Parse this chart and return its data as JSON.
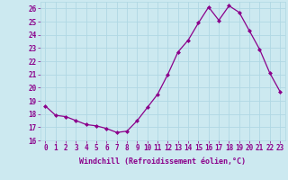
{
  "x": [
    0,
    1,
    2,
    3,
    4,
    5,
    6,
    7,
    8,
    9,
    10,
    11,
    12,
    13,
    14,
    15,
    16,
    17,
    18,
    19,
    20,
    21,
    22,
    23
  ],
  "y": [
    18.6,
    17.9,
    17.8,
    17.5,
    17.2,
    17.1,
    16.9,
    16.6,
    16.7,
    17.5,
    18.5,
    19.5,
    21.0,
    22.7,
    23.6,
    24.9,
    26.1,
    25.1,
    26.2,
    25.7,
    24.3,
    22.9,
    21.1,
    19.7
  ],
  "line_color": "#8b008b",
  "marker": "D",
  "marker_size": 2.0,
  "xlabel": "Windchill (Refroidissement éolien,°C)",
  "xlabel_fontsize": 6.0,
  "ylim": [
    16,
    26.5
  ],
  "yticks": [
    16,
    17,
    18,
    19,
    20,
    21,
    22,
    23,
    24,
    25,
    26
  ],
  "xticks": [
    0,
    1,
    2,
    3,
    4,
    5,
    6,
    7,
    8,
    9,
    10,
    11,
    12,
    13,
    14,
    15,
    16,
    17,
    18,
    19,
    20,
    21,
    22,
    23
  ],
  "bg_color": "#cce9f0",
  "grid_color": "#b0d8e4",
  "tick_color": "#8b008b",
  "label_color": "#8b008b",
  "tick_fontsize": 5.5,
  "linewidth": 0.9
}
